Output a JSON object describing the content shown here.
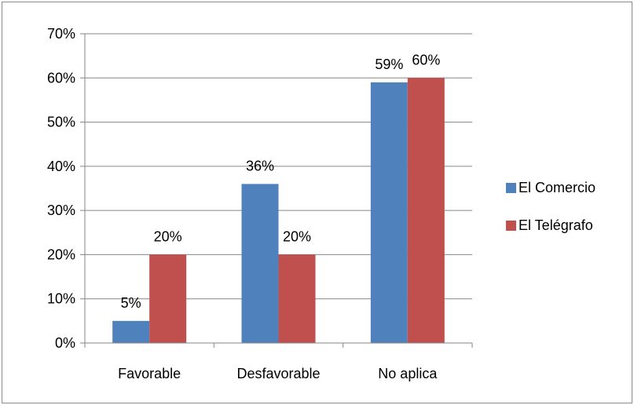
{
  "chart_data": {
    "type": "bar",
    "categories": [
      "Favorable",
      "Desfavorable",
      "No aplica"
    ],
    "series": [
      {
        "name": "El Comercio",
        "values": [
          5,
          36,
          59
        ],
        "labels": [
          "5%",
          "36%",
          "59%"
        ],
        "color": "#4f81bd"
      },
      {
        "name": "El Telégrafo",
        "values": [
          20,
          20,
          60
        ],
        "labels": [
          "20%",
          "20%",
          "60%"
        ],
        "color": "#c0504d"
      }
    ],
    "y_ticks": [
      "0%",
      "10%",
      "20%",
      "30%",
      "40%",
      "50%",
      "60%",
      "70%"
    ],
    "ylim": [
      0,
      70
    ],
    "y_step": 10,
    "grid": true,
    "legend_position": "right",
    "title": "",
    "xlabel": "",
    "ylabel": ""
  }
}
